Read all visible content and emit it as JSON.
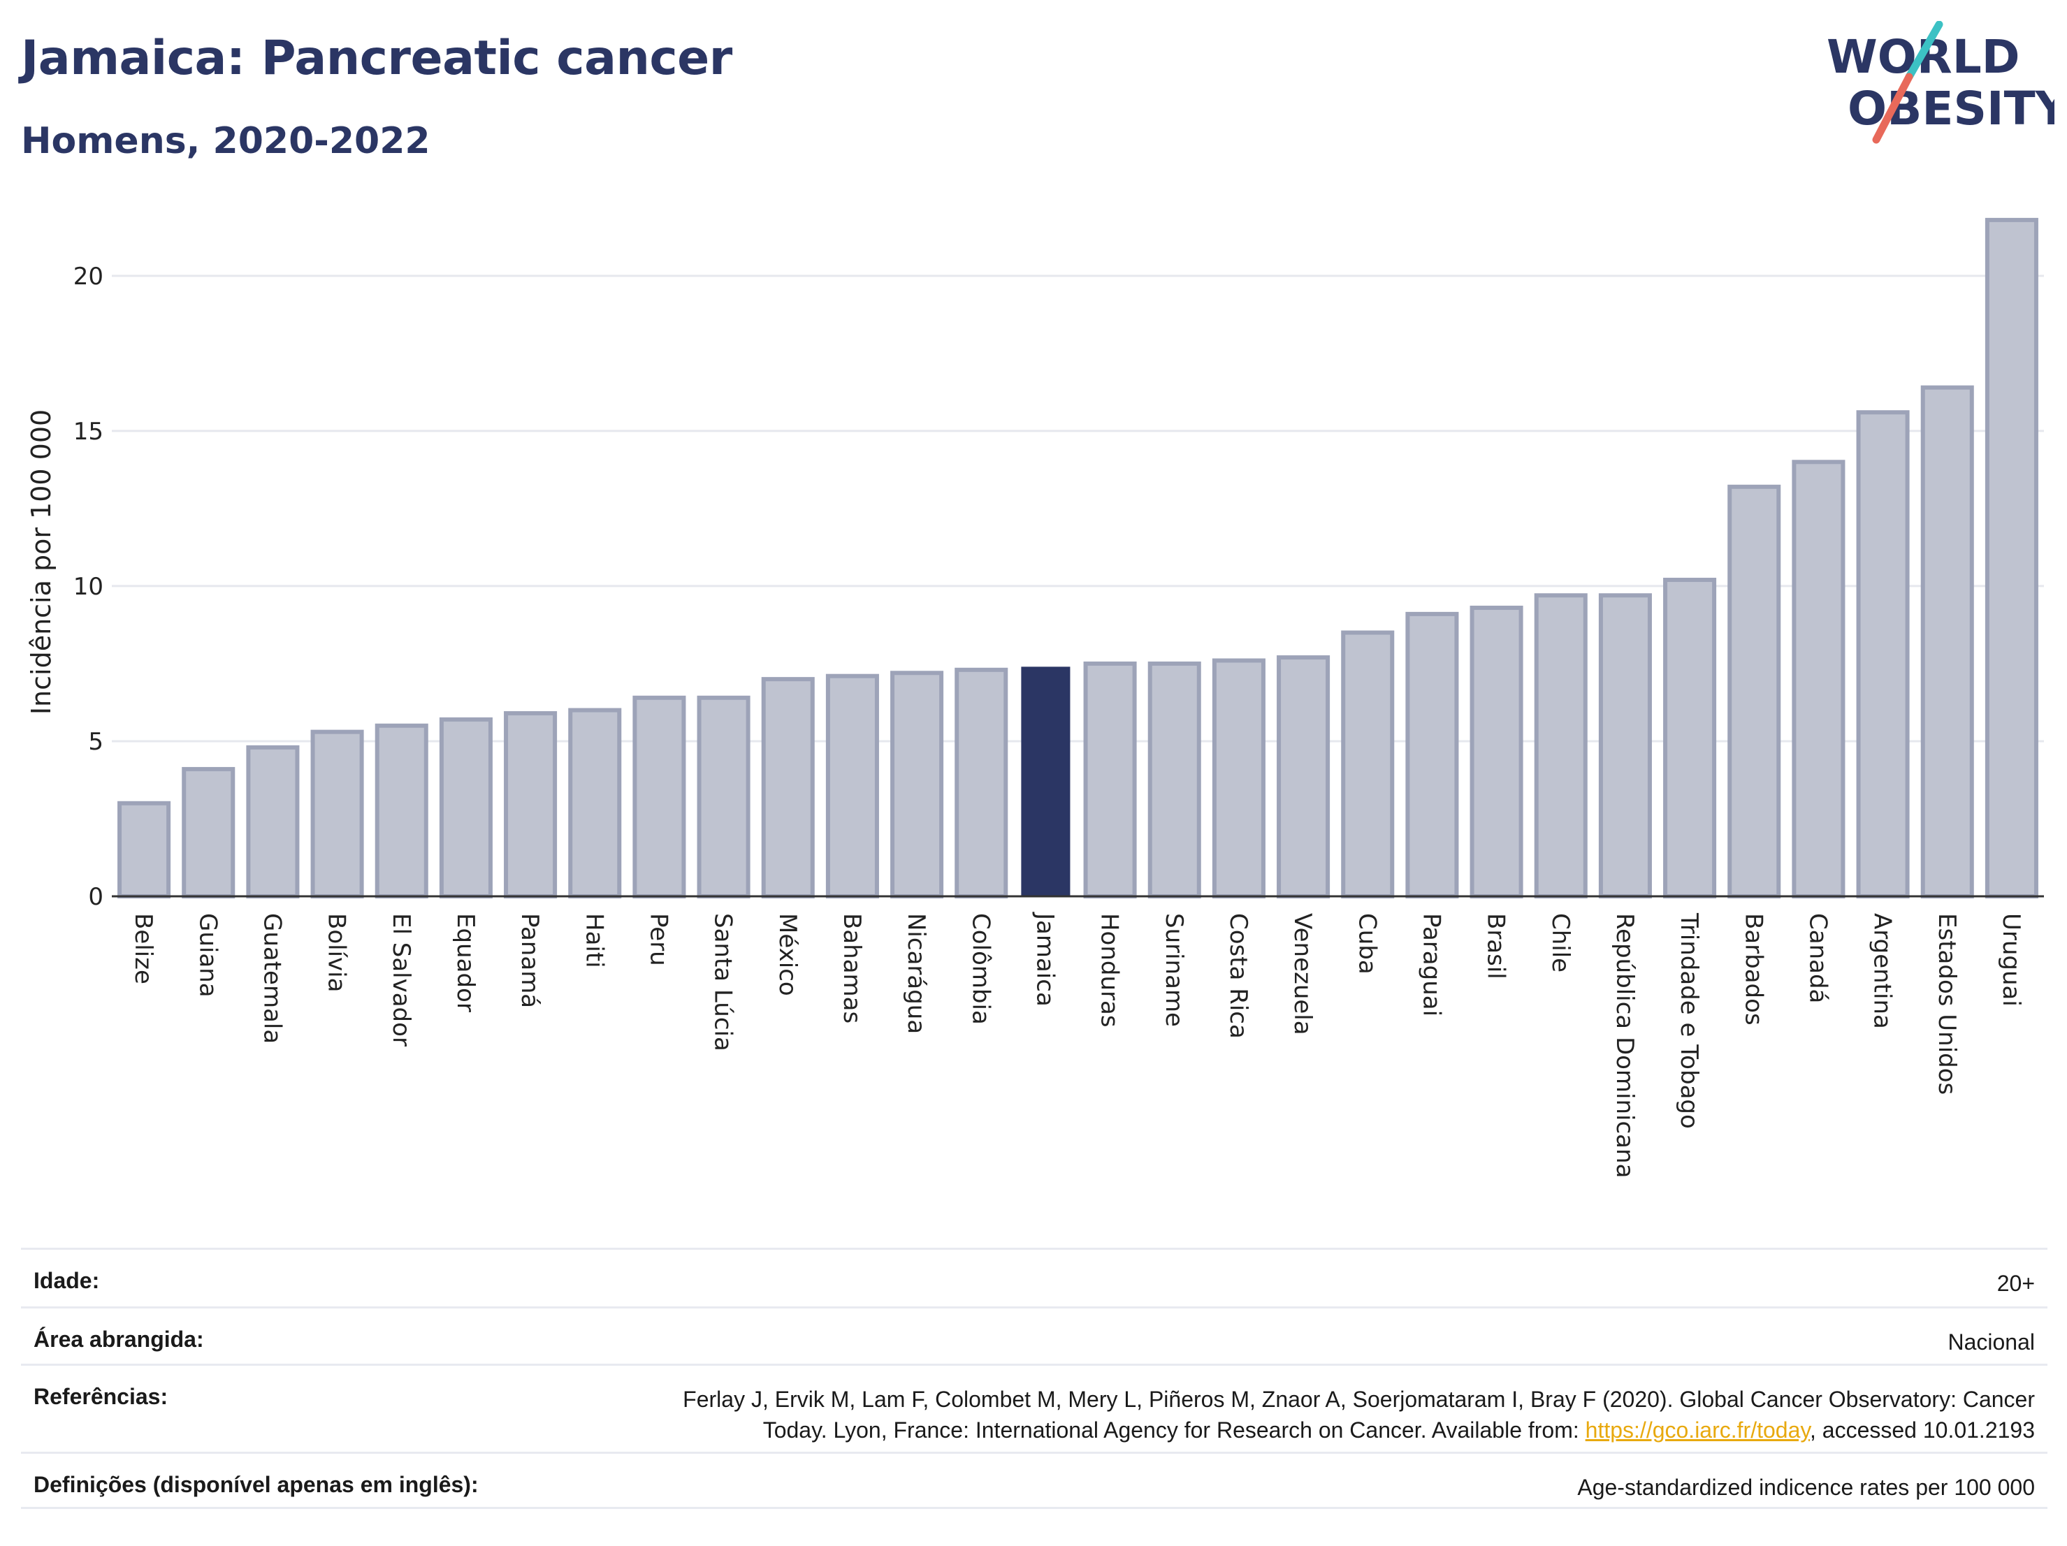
{
  "title": "Jamaica: Pancreatic cancer",
  "subtitle": "Homens, 2020-2022",
  "logo": {
    "line1": "WORLD",
    "line2": "OBESITY"
  },
  "colors": {
    "highlight": "#2b3664",
    "bar": "#bfc3d0",
    "bar_border": "#9da3b8",
    "text": "#2b3664",
    "logo_slash_top": "#3cc1c4",
    "logo_slash_bottom": "#e8695a",
    "link": "#e8a90f"
  },
  "chart_data": {
    "type": "bar",
    "ylabel": "Incidência por 100 000",
    "yticks": [
      0,
      5,
      10,
      15,
      20
    ],
    "ylim": [
      0,
      22
    ],
    "grid": true,
    "highlight": "Jamaica",
    "categories": [
      "Belize",
      "Guiana",
      "Guatemala",
      "Bolívia",
      "El Salvador",
      "Equador",
      "Panamá",
      "Haiti",
      "Peru",
      "Santa Lúcia",
      "México",
      "Bahamas",
      "Nicarágua",
      "Colômbia",
      "Jamaica",
      "Honduras",
      "Suriname",
      "Costa Rica",
      "Venezuela",
      "Cuba",
      "Paraguai",
      "Brasil",
      "Chile",
      "República Dominicana",
      "Trindade e Tobago",
      "Barbados",
      "Canadá",
      "Argentina",
      "Estados Unidos",
      "Uruguai"
    ],
    "values": [
      3.0,
      4.1,
      4.8,
      5.3,
      5.5,
      5.7,
      5.9,
      6.0,
      6.4,
      6.4,
      7.0,
      7.1,
      7.2,
      7.3,
      7.4,
      7.5,
      7.5,
      7.6,
      7.7,
      8.5,
      9.1,
      9.3,
      9.7,
      9.7,
      10.2,
      13.2,
      14.0,
      15.6,
      16.4,
      21.8
    ]
  },
  "footer": {
    "age_label": "Idade:",
    "age_value": "20+",
    "area_label": "Área abrangida:",
    "area_value": "Nacional",
    "ref_label": "Referências:",
    "ref_line1": "Ferlay J, Ervik M, Lam F, Colombet M, Mery L, Piñeros M, Znaor A, Soerjomataram I, Bray F (2020). Global Cancer Observatory: Cancer",
    "ref_line2_pre": "Today. Lyon, France: International Agency for Research on Cancer. Available from: ",
    "ref_link": "https://gco.iarc.fr/today",
    "ref_line2_post": ", accessed 10.01.2193",
    "def_label": "Definições (disponível apenas em inglês):",
    "def_value": "Age-standardized indicence rates per 100 000"
  }
}
